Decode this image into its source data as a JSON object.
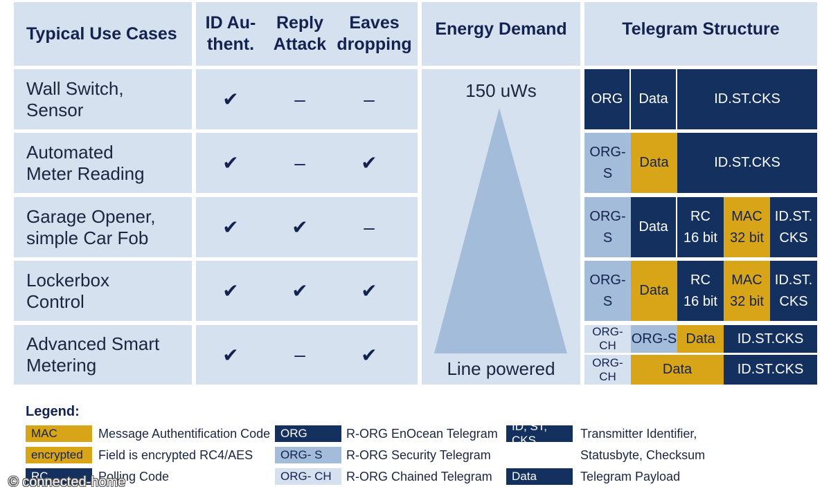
{
  "headers": {
    "use_cases": "Typical Use Cases",
    "id_auth": "ID Au-\nthent.",
    "reply": "Reply\nAttack",
    "eaves": "Eaves\ndropping",
    "energy": "Energy Demand",
    "telegram": "Telegram Structure"
  },
  "rows": [
    {
      "use_case": "Wall Switch,\nSensor",
      "id_auth": "✔",
      "reply": "–",
      "eaves": "–"
    },
    {
      "use_case": "Automated\nMeter Reading",
      "id_auth": "✔",
      "reply": "–",
      "eaves": "✔"
    },
    {
      "use_case": "Garage Opener,\nsimple Car Fob",
      "id_auth": "✔",
      "reply": "✔",
      "eaves": "–"
    },
    {
      "use_case": "Lockerbox\nControl",
      "id_auth": "✔",
      "reply": "✔",
      "eaves": "✔"
    },
    {
      "use_case": "Advanced Smart\nMetering",
      "id_auth": "✔",
      "reply": "–",
      "eaves": "✔"
    }
  ],
  "energy": {
    "top_label": "150 uWs",
    "bottom_label": "Line powered",
    "triangle_color": "#a3bcd9"
  },
  "telegram": {
    "row1": {
      "org": "ORG",
      "data": "Data",
      "id": "ID.ST.CKS"
    },
    "row2": {
      "org": "ORG-\nS",
      "data": "Data",
      "id": "ID.ST.CKS"
    },
    "row3": {
      "org": "ORG-\nS",
      "data": "Data",
      "rc": "RC\n16 bit",
      "mac": "MAC\n32 bit",
      "id": "ID.ST.\nCKS"
    },
    "row4": {
      "org": "ORG-\nS",
      "data": "Data",
      "rc": "RC\n16 bit",
      "mac": "MAC\n32 bit",
      "id": "ID.ST.\nCKS"
    },
    "row5a": {
      "org": "ORG-\nCH",
      "orgs": "ORG-S",
      "data": "Data",
      "id": "ID.ST.CKS"
    },
    "row5b": {
      "org": "ORG-\nCH",
      "data": "Data",
      "id": "ID.ST.CKS"
    }
  },
  "legend": {
    "title": "Legend:",
    "mac_box": "MAC",
    "mac_desc": "Message Authentification Code",
    "enc_box": "encrypted",
    "enc_desc": "Field is encrypted RC4/AES",
    "rc_box": "RC",
    "rc_desc": "Polling Code",
    "org_box": "ORG",
    "org_desc": "R-ORG EnOcean Telegram",
    "orgs_box": "ORG- S",
    "orgs_desc": "R-ORG Security Telegram",
    "orgch_box": "ORG- CH",
    "orgch_desc": "R-ORG Chained Telegram",
    "id_box": "ID, ST, CKS",
    "id_desc_1": "Transmitter Identifier,",
    "id_desc_2": "Statusbyte, Checksum",
    "data_box": "Data",
    "data_desc": "Telegram Payload"
  },
  "watermark": "© connected-home",
  "colors": {
    "panel": "#d6e1ef",
    "navy": "#14305f",
    "gold": "#d9a518",
    "light_blue": "#a3bcd9"
  }
}
